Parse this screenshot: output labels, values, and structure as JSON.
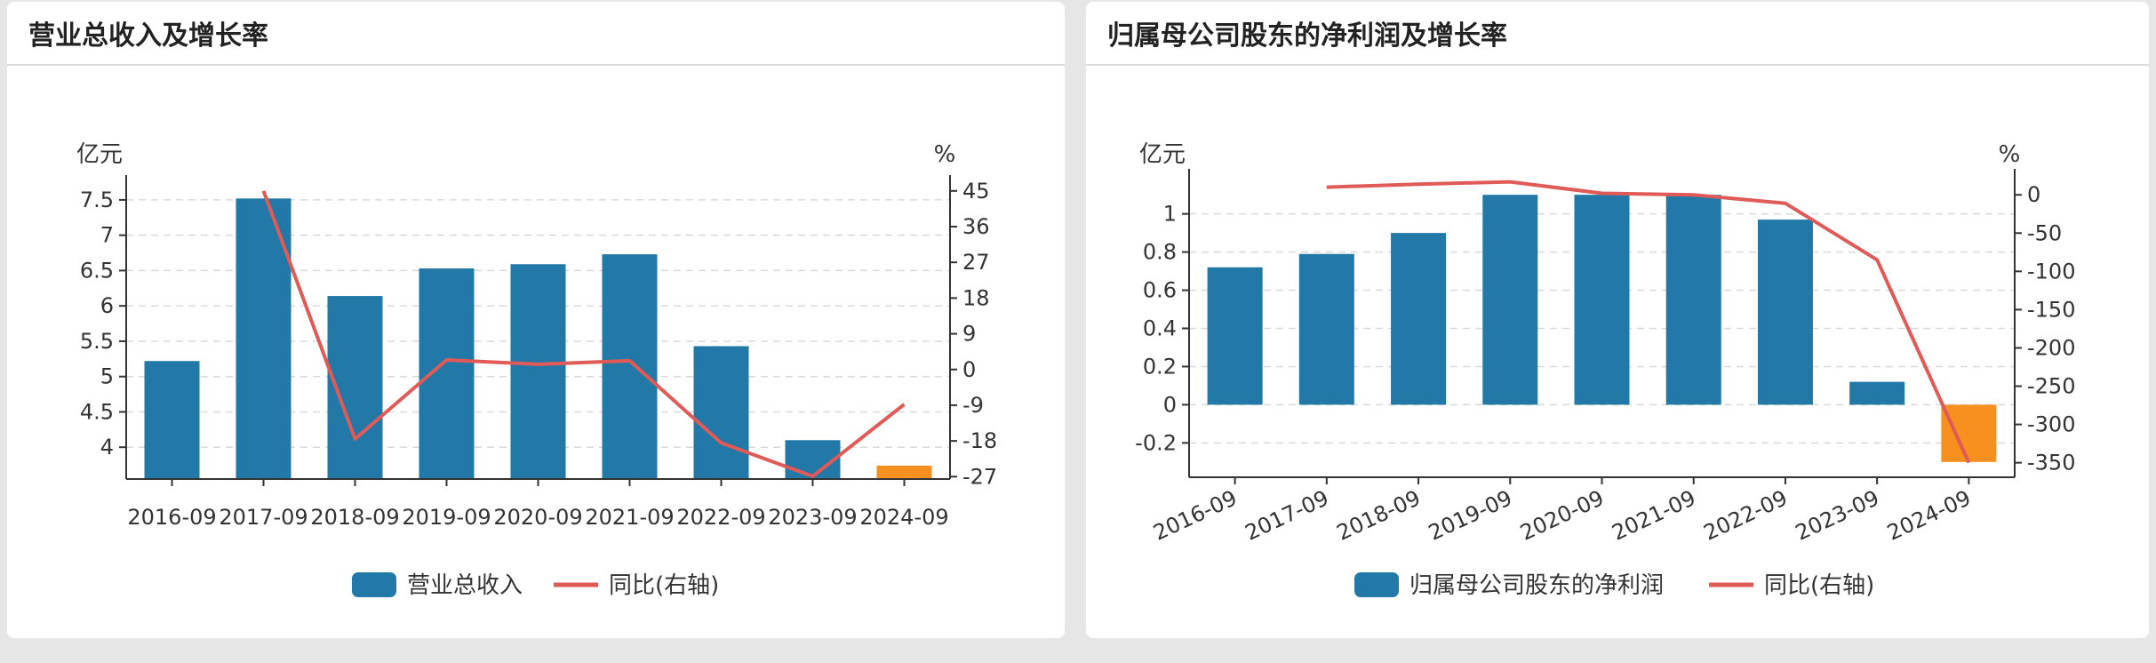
{
  "panels": [
    {
      "title": "营业总收入及增长率",
      "chart_data": {
        "type": "bar",
        "categories": [
          "2016-09",
          "2017-09",
          "2018-09",
          "2019-09",
          "2020-09",
          "2021-09",
          "2022-09",
          "2023-09",
          "2024-09"
        ],
        "series": [
          {
            "name": "营业总收入",
            "type": "bar",
            "axis": "left",
            "values": [
              5.22,
              7.52,
              6.14,
              6.53,
              6.59,
              6.73,
              5.43,
              4.1,
              3.74
            ],
            "color": "#2279a7",
            "highlight_color": "#f7901e",
            "highlight_index": 8
          },
          {
            "name": "同比(右轴)",
            "type": "line",
            "axis": "right",
            "values": [
              null,
              45,
              -17.5,
              2.4,
              1.3,
              2.2,
              -18.5,
              -26.9,
              -8.8
            ],
            "color": "#e05a57"
          }
        ],
        "left_axis": {
          "unit": "亿元",
          "ticks": [
            "7.5",
            "7",
            "6.5",
            "6",
            "5.5",
            "5",
            "4.5",
            "4"
          ],
          "range": [
            3.55,
            7.7
          ]
        },
        "right_axis": {
          "unit": "%",
          "ticks": [
            "45",
            "36",
            "27",
            "18",
            "9",
            "0",
            "-9",
            "-18",
            "-27"
          ],
          "range": [
            -27.6,
            46.3
          ]
        },
        "x_labels_rotated": false,
        "grid": true,
        "legend_position": "bottom"
      }
    },
    {
      "title": "归属母公司股东的净利润及增长率",
      "chart_data": {
        "type": "bar",
        "categories": [
          "2016-09",
          "2017-09",
          "2018-09",
          "2019-09",
          "2020-09",
          "2021-09",
          "2022-09",
          "2023-09",
          "2024-09"
        ],
        "series": [
          {
            "name": "归属母公司股东的净利润",
            "type": "bar",
            "axis": "left",
            "values": [
              0.72,
              0.79,
              0.9,
              1.1,
              1.1,
              1.1,
              0.97,
              0.12,
              -0.3
            ],
            "color": "#2279a7",
            "highlight_color": "#f7901e",
            "highlight_index": 8
          },
          {
            "name": "同比(右轴)",
            "type": "line",
            "axis": "right",
            "values": [
              null,
              10,
              14,
              17,
              2,
              0,
              -11,
              -85,
              -350
            ],
            "color": "#e05a57"
          }
        ],
        "left_axis": {
          "unit": "亿元",
          "ticks": [
            "1",
            "0.8",
            "0.6",
            "0.4",
            "0.2",
            "0",
            "-0.2"
          ],
          "range": [
            -0.38,
            1.18
          ]
        },
        "right_axis": {
          "unit": "%",
          "ticks": [
            "0",
            "-50",
            "-100",
            "-150",
            "-200",
            "-250",
            "-300",
            "-350"
          ],
          "range": [
            -369,
            20
          ]
        },
        "x_labels_rotated": true,
        "grid": true,
        "legend_position": "bottom"
      }
    }
  ]
}
